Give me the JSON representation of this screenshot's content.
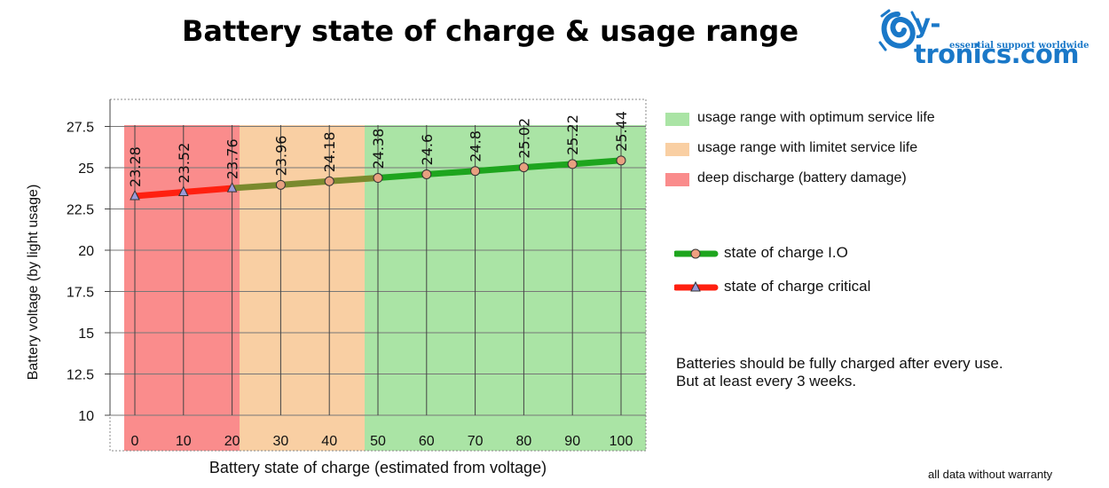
{
  "title": "Battery state of charge & usage range",
  "logo": {
    "name": "y-tronics.com",
    "tagline": "essential support worldwide"
  },
  "chart_data": {
    "type": "line",
    "xlabel": "Battery state of charge (estimated from voltage)",
    "ylabel": "Battery voltage (by light usage)",
    "x": [
      0,
      10,
      20,
      30,
      40,
      50,
      60,
      70,
      80,
      90,
      100
    ],
    "x_tick_labels": [
      "0",
      "10",
      "20",
      "30",
      "40",
      "50",
      "60",
      "70",
      "80",
      "90",
      "100"
    ],
    "y_ticks": [
      10,
      12.5,
      15,
      17.5,
      20,
      22.5,
      25,
      27.5
    ],
    "y_tick_labels": [
      "10",
      "12.5",
      "15",
      "17.5",
      "20",
      "22.5",
      "25",
      "27.5"
    ],
    "ylim": [
      10,
      27.5
    ],
    "grid": true,
    "series": [
      {
        "name": "state of charge critical",
        "color": "#ff2010",
        "marker": "triangle",
        "x": [
          0,
          10,
          20
        ],
        "values": [
          23.28,
          23.52,
          23.76
        ],
        "labels": [
          "23.28",
          "23.52",
          "23.76"
        ]
      },
      {
        "name": "state of charge I.O",
        "color": "#1ea51e",
        "marker": "circle",
        "x": [
          20,
          30,
          40,
          50,
          60,
          70,
          80,
          90,
          100
        ],
        "values": [
          23.76,
          23.96,
          24.18,
          24.38,
          24.6,
          24.8,
          25.02,
          25.22,
          25.44
        ],
        "labels": [
          "",
          "23.96",
          "24.18",
          "24.38",
          "24.6",
          "24.8",
          "25.02",
          "25.22",
          "25.44"
        ]
      }
    ],
    "zones": [
      {
        "name": "deep discharge (battery damage)",
        "from": 0,
        "to": 20,
        "color": "#fa8c8c"
      },
      {
        "name": "usage range with limitet service life",
        "from": 20,
        "to": 45,
        "color": "#f9cfa3"
      },
      {
        "name": "usage range with optimum service life",
        "from": 45,
        "to": 100,
        "color": "#aae4a5"
      }
    ]
  },
  "legend": {
    "zones": [
      {
        "label": "usage range with optimum service life",
        "color": "#aae4a5"
      },
      {
        "label": "usage range with limitet service life",
        "color": "#f9cfa3"
      },
      {
        "label": "deep discharge (battery damage)",
        "color": "#fa8c8c"
      }
    ],
    "series": [
      {
        "label": "state of charge I.O",
        "color": "#1ea51e",
        "marker": "circle"
      },
      {
        "label": "state of charge critical",
        "color": "#ff2010",
        "marker": "triangle"
      }
    ]
  },
  "note": {
    "line1": "Batteries should be fully charged after every use.",
    "line2": "But at least every 3 weeks."
  },
  "warranty": "all data without warranty"
}
